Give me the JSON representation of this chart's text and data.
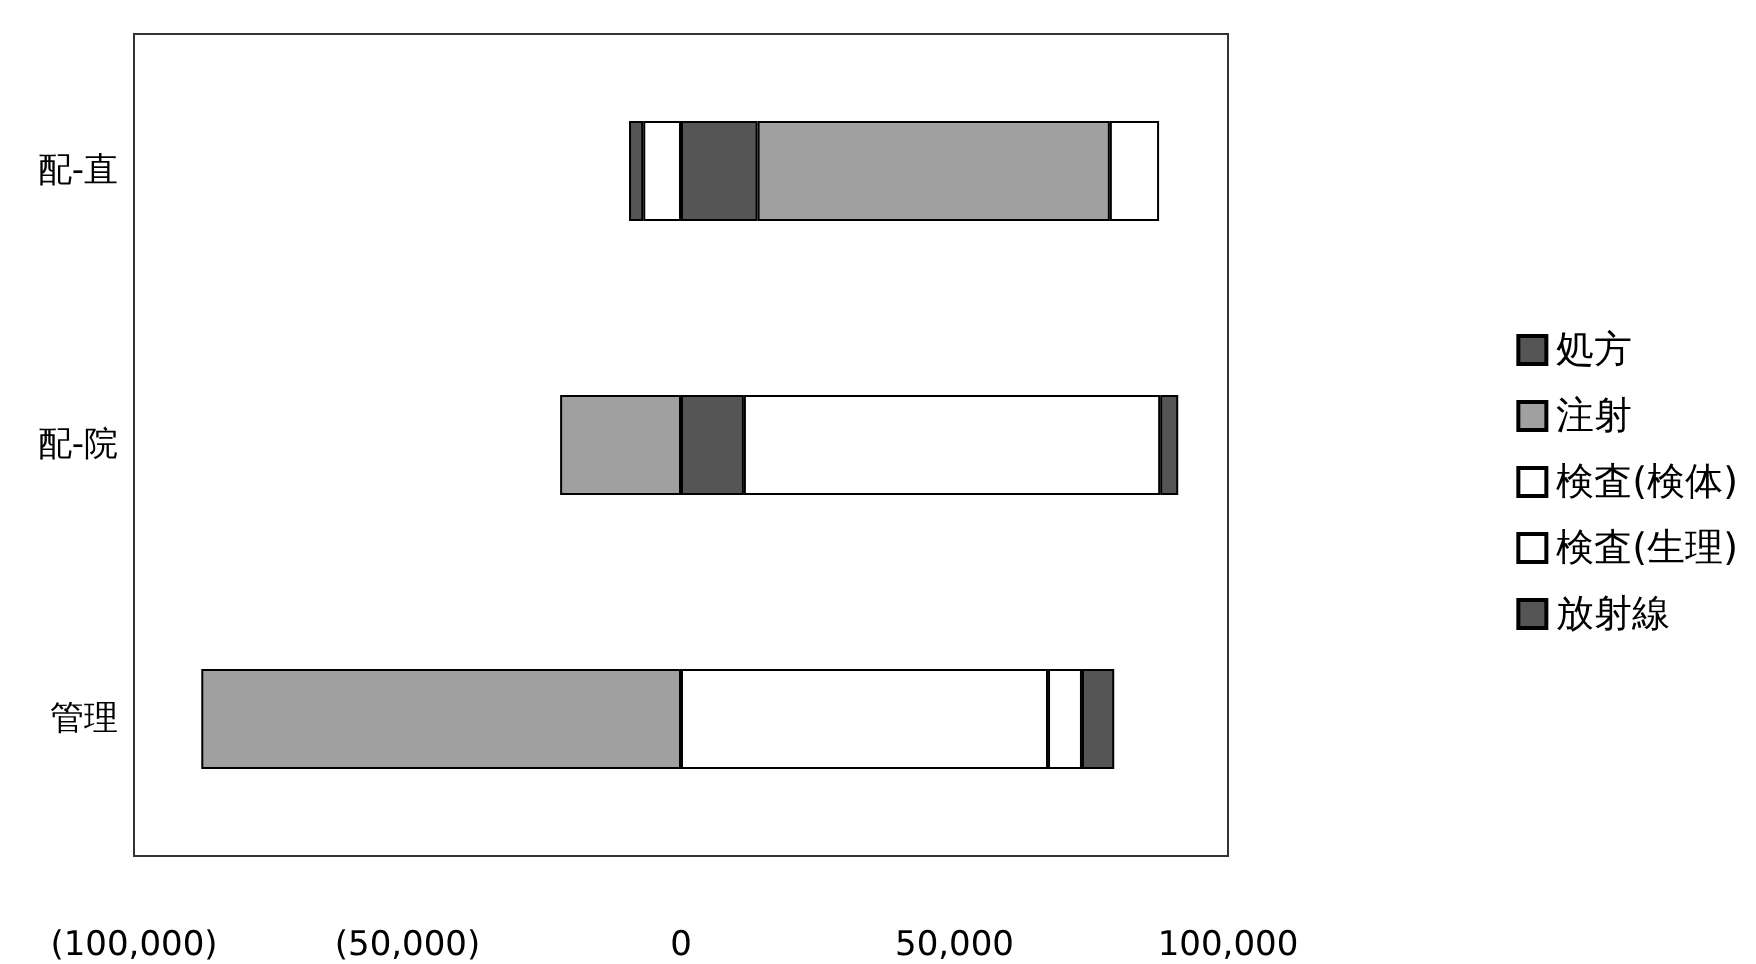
{
  "chart_data": {
    "type": "bar",
    "orientation": "horizontal",
    "stacked": true,
    "categories": [
      "配-直",
      "配-院",
      "管理"
    ],
    "series": [
      {
        "name": "処方",
        "color": "#555555",
        "values": [
          14000,
          11500,
          null
        ]
      },
      {
        "name": "注射",
        "color": "#a0a0a0",
        "values": [
          64400,
          -22100,
          -87700
        ]
      },
      {
        "name": "検査(検体)",
        "color": "#ffffff",
        "values": [
          9000,
          76100,
          67100
        ]
      },
      {
        "name": "検査(生理)",
        "color": "#ffffff",
        "values": [
          -6900,
          null,
          6200
        ]
      },
      {
        "name": "放射線",
        "color": "#555555",
        "values": [
          -2600,
          3300,
          5900
        ]
      }
    ],
    "xlim": [
      -100000,
      100000
    ],
    "xticks": [
      {
        "value": -100000,
        "label": "(100,000)"
      },
      {
        "value": -50000,
        "label": "(50,000)"
      },
      {
        "value": 0,
        "label": "0"
      },
      {
        "value": 50000,
        "label": "50,000"
      },
      {
        "value": 100000,
        "label": "100,000"
      }
    ],
    "grid": false,
    "legend": "right"
  }
}
